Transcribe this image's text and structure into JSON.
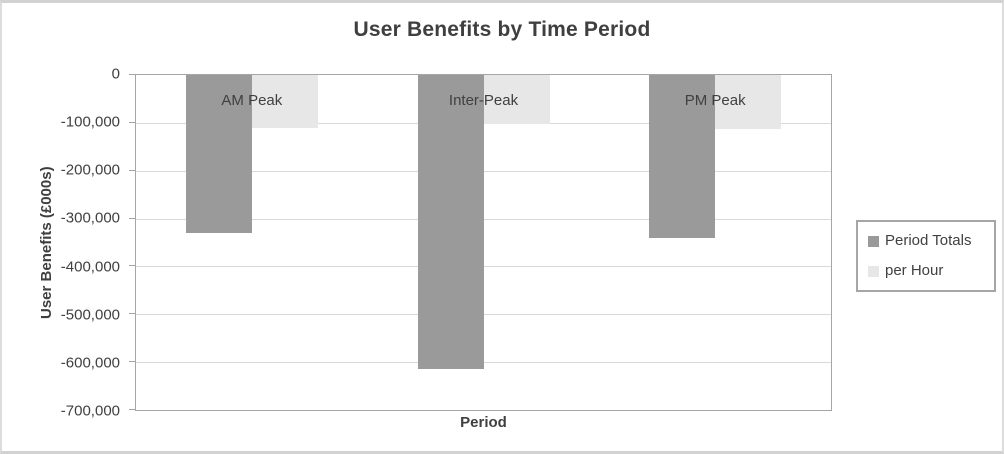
{
  "window": {
    "background": "#ffffff",
    "border_color": "#d2d2d2"
  },
  "chart_data": {
    "type": "bar",
    "title": "User Benefits by Time Period",
    "xlabel": "Period",
    "ylabel": "User Benefits (£000s)",
    "categories": [
      "AM Peak",
      "Inter-Peak",
      "PM Peak"
    ],
    "series": [
      {
        "name": "Period Totals",
        "color": "#9a9a9a",
        "values": [
          -330000,
          -615000,
          -340000
        ]
      },
      {
        "name": "per Hour",
        "color": "#e7e7e7",
        "values": [
          -110000,
          -102500,
          -113000
        ]
      }
    ],
    "ylim": [
      -700000,
      0
    ],
    "y_tick_labels": [
      "0",
      "-100,000",
      "-200,000",
      "-300,000",
      "-400,000",
      "-500,000",
      "-600,000",
      "-700,000"
    ],
    "grid": true,
    "legend_position": "right",
    "colors": {
      "text": "#404040",
      "gridline": "#d9d9d9",
      "plot_border": "#a6a6a6",
      "legend_border": "#a6a6a6"
    }
  }
}
